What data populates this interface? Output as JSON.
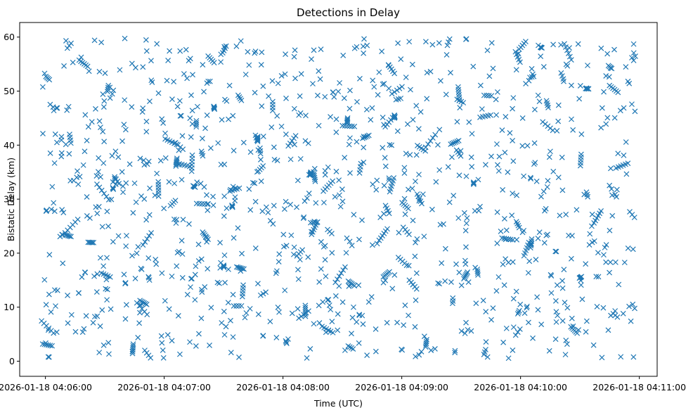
{
  "chart_data": {
    "type": "scatter",
    "title": "Detections in Delay",
    "xlabel": "Time (UTC)",
    "ylabel": "Bistatic Delay (km)",
    "marker": "x",
    "color": "#1f77b4",
    "grid": false,
    "legend": "none",
    "x_ticks": [
      "2026-01-18 04:06:00",
      "2026-01-18 04:07:00",
      "2026-01-18 04:08:00",
      "2026-01-18 04:09:00",
      "2026-01-18 04:10:00",
      "2026-01-18 04:11:00"
    ],
    "y_ticks": [
      "0",
      "10",
      "20",
      "30",
      "40",
      "50",
      "60"
    ],
    "xlim": [
      "2026-01-18 04:05:47",
      "2026-01-18 04:11:09"
    ],
    "ylim": [
      -2.8,
      62.7
    ],
    "time_range": [
      "2026-01-18 04:05:58",
      "2026-01-18 04:10:58"
    ],
    "delay_range": [
      0.5,
      59.8
    ],
    "detections": 1500
  }
}
